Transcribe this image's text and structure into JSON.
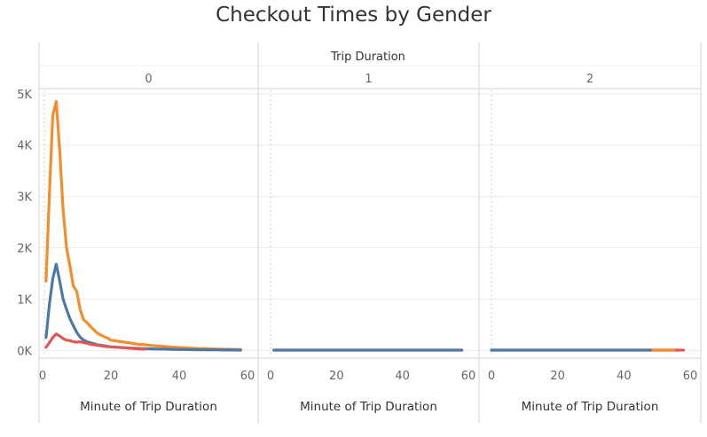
{
  "title": "Checkout Times by Gender",
  "colors": {
    "series_orange": "#f28e2b",
    "series_blue": "#4e79a7",
    "series_red": "#e15759",
    "grid": "#ececec",
    "border": "#d4d4d4",
    "dotted_ref": "#cfcfcf",
    "text": "#333333",
    "tick_text": "#666666"
  },
  "chart_data": {
    "type": "line",
    "title": "Checkout Times by Gender",
    "header_label": "Trip Duration",
    "facets": [
      {
        "label": "0",
        "xlabel": "Minute of Trip Duration",
        "series": [
          {
            "color": "orange",
            "x": [
              1,
              2,
              3,
              4,
              5,
              6,
              7,
              8,
              9,
              10,
              11,
              12,
              13,
              14,
              15,
              16,
              17,
              18,
              19,
              20,
              22,
              24,
              26,
              28,
              30,
              32,
              34,
              36,
              38,
              40,
              42,
              44,
              46,
              48,
              50,
              52,
              54,
              56,
              58
            ],
            "values": [
              1350,
              3050,
              4580,
              4850,
              3900,
              2750,
              2000,
              1650,
              1250,
              1150,
              800,
              600,
              540,
              470,
              400,
              340,
              300,
              270,
              240,
              200,
              180,
              160,
              140,
              120,
              110,
              95,
              85,
              75,
              65,
              55,
              48,
              42,
              37,
              33,
              28,
              25,
              22,
              20,
              18
            ]
          },
          {
            "color": "blue",
            "x": [
              1,
              2,
              3,
              4,
              5,
              6,
              7,
              8,
              9,
              10,
              11,
              12,
              13,
              14,
              15,
              16,
              17,
              18,
              19,
              20,
              22,
              24,
              26,
              28,
              30,
              32,
              34,
              36,
              38,
              40,
              42,
              44,
              46,
              48,
              50,
              52,
              54,
              56,
              58
            ],
            "values": [
              250,
              900,
              1400,
              1680,
              1350,
              1000,
              800,
              620,
              480,
              350,
              260,
              200,
              170,
              150,
              130,
              110,
              100,
              90,
              80,
              70,
              60,
              52,
              45,
              40,
              35,
              30,
              27,
              24,
              21,
              18,
              16,
              14,
              12,
              11,
              10,
              9,
              8,
              7,
              6
            ]
          },
          {
            "color": "red",
            "x": [
              1,
              2,
              3,
              4,
              5,
              6,
              7,
              8,
              9,
              10,
              11,
              12,
              13,
              14,
              15,
              16,
              17,
              18,
              19,
              20,
              22,
              24,
              26,
              28,
              30
            ],
            "values": [
              60,
              150,
              250,
              320,
              280,
              230,
              200,
              190,
              170,
              160,
              170,
              150,
              140,
              120,
              110,
              100,
              90,
              80,
              75,
              70,
              60,
              50,
              40,
              30,
              25
            ]
          }
        ]
      },
      {
        "label": "1",
        "xlabel": "Minute of Trip Duration",
        "series": [
          {
            "color": "orange",
            "x": [
              1,
              58
            ],
            "values": [
              5,
              5
            ]
          },
          {
            "color": "blue",
            "x": [
              1,
              58
            ],
            "values": [
              5,
              5
            ]
          }
        ]
      },
      {
        "label": "2",
        "xlabel": "Minute of Trip Duration",
        "series": [
          {
            "color": "red",
            "x": [
              48,
              58
            ],
            "values": [
              5,
              5
            ]
          },
          {
            "color": "orange",
            "x": [
              0,
              55
            ],
            "values": [
              5,
              5
            ]
          },
          {
            "color": "blue",
            "x": [
              0,
              48
            ],
            "values": [
              5,
              5
            ]
          }
        ]
      }
    ],
    "x_range": [
      0,
      60
    ],
    "x_ticks": [
      "0",
      "20",
      "40",
      "60"
    ],
    "y_range": [
      -150,
      5100
    ],
    "y_ticks": [
      "0K",
      "1K",
      "2K",
      "3K",
      "4K",
      "5K"
    ],
    "y_tick_values": [
      0,
      1000,
      2000,
      3000,
      4000,
      5000
    ],
    "grid": true
  }
}
